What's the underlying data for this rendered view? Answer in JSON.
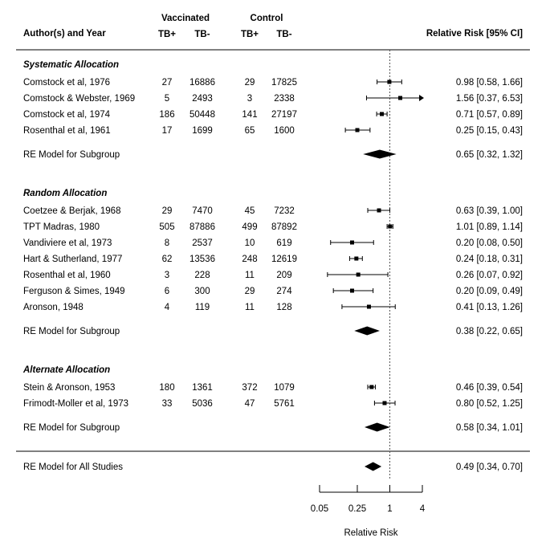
{
  "header": {
    "author_col": "Author(s) and Year",
    "vaccinated": "Vaccinated",
    "control": "Control",
    "tb_pos": "TB+",
    "tb_neg": "TB-",
    "rr_col": "Relative Risk [95% CI]"
  },
  "chart_data": {
    "type": "forest",
    "xlabel": "Relative Risk",
    "x_scale": "log",
    "x_ticks": [
      0.05,
      0.25,
      1,
      4
    ],
    "x_tick_labels": [
      "0.05",
      "0.25",
      "1",
      "4"
    ],
    "reference_line": 1,
    "groups": [
      {
        "label": "Systematic Allocation",
        "studies": [
          {
            "name": "Comstock et al, 1976",
            "vpos": "27",
            "vneg": "16886",
            "cpos": "29",
            "cneg": "17825",
            "rr": 0.98,
            "lo": 0.58,
            "hi": 1.66,
            "text": "0.98 [0.58, 1.66]"
          },
          {
            "name": "Comstock & Webster, 1969",
            "vpos": "5",
            "vneg": "2493",
            "cpos": "3",
            "cneg": "2338",
            "rr": 1.56,
            "lo": 0.37,
            "hi": 6.53,
            "text": "1.56 [0.37, 6.53]"
          },
          {
            "name": "Comstock et al, 1974",
            "vpos": "186",
            "vneg": "50448",
            "cpos": "141",
            "cneg": "27197",
            "rr": 0.71,
            "lo": 0.57,
            "hi": 0.89,
            "text": "0.71 [0.57, 0.89]"
          },
          {
            "name": "Rosenthal et al, 1961",
            "vpos": "17",
            "vneg": "1699",
            "cpos": "65",
            "cneg": "1600",
            "rr": 0.25,
            "lo": 0.15,
            "hi": 0.43,
            "text": "0.25 [0.15, 0.43]"
          }
        ],
        "summary": {
          "label": "RE Model for Subgroup",
          "rr": 0.65,
          "lo": 0.32,
          "hi": 1.32,
          "text": "0.65 [0.32, 1.32]"
        }
      },
      {
        "label": "Random Allocation",
        "studies": [
          {
            "name": "Coetzee & Berjak, 1968",
            "vpos": "29",
            "vneg": "7470",
            "cpos": "45",
            "cneg": "7232",
            "rr": 0.63,
            "lo": 0.39,
            "hi": 1.0,
            "text": "0.63 [0.39, 1.00]"
          },
          {
            "name": "TPT Madras, 1980",
            "vpos": "505",
            "vneg": "87886",
            "cpos": "499",
            "cneg": "87892",
            "rr": 1.01,
            "lo": 0.89,
            "hi": 1.14,
            "text": "1.01 [0.89, 1.14]"
          },
          {
            "name": "Vandiviere et al, 1973",
            "vpos": "8",
            "vneg": "2537",
            "cpos": "10",
            "cneg": "619",
            "rr": 0.2,
            "lo": 0.08,
            "hi": 0.5,
            "text": "0.20 [0.08, 0.50]"
          },
          {
            "name": "Hart & Sutherland, 1977",
            "vpos": "62",
            "vneg": "13536",
            "cpos": "248",
            "cneg": "12619",
            "rr": 0.24,
            "lo": 0.18,
            "hi": 0.31,
            "text": "0.24 [0.18, 0.31]"
          },
          {
            "name": "Rosenthal et al, 1960",
            "vpos": "3",
            "vneg": "228",
            "cpos": "11",
            "cneg": "209",
            "rr": 0.26,
            "lo": 0.07,
            "hi": 0.92,
            "text": "0.26 [0.07, 0.92]"
          },
          {
            "name": "Ferguson & Simes, 1949",
            "vpos": "6",
            "vneg": "300",
            "cpos": "29",
            "cneg": "274",
            "rr": 0.2,
            "lo": 0.09,
            "hi": 0.49,
            "text": "0.20 [0.09, 0.49]"
          },
          {
            "name": "Aronson, 1948",
            "vpos": "4",
            "vneg": "119",
            "cpos": "11",
            "cneg": "128",
            "rr": 0.41,
            "lo": 0.13,
            "hi": 1.26,
            "text": "0.41 [0.13, 1.26]"
          }
        ],
        "summary": {
          "label": "RE Model for Subgroup",
          "rr": 0.38,
          "lo": 0.22,
          "hi": 0.65,
          "text": "0.38 [0.22, 0.65]"
        }
      },
      {
        "label": "Alternate Allocation",
        "studies": [
          {
            "name": "Stein & Aronson, 1953",
            "vpos": "180",
            "vneg": "1361",
            "cpos": "372",
            "cneg": "1079",
            "rr": 0.46,
            "lo": 0.39,
            "hi": 0.54,
            "text": "0.46 [0.39, 0.54]"
          },
          {
            "name": "Frimodt-Moller et al, 1973",
            "vpos": "33",
            "vneg": "5036",
            "cpos": "47",
            "cneg": "5761",
            "rr": 0.8,
            "lo": 0.52,
            "hi": 1.25,
            "text": "0.80 [0.52, 1.25]"
          }
        ],
        "summary": {
          "label": "RE Model for Subgroup",
          "rr": 0.58,
          "lo": 0.34,
          "hi": 1.01,
          "text": "0.58 [0.34, 1.01]"
        }
      }
    ],
    "overall": {
      "label": "RE Model for All Studies",
      "rr": 0.49,
      "lo": 0.34,
      "hi": 0.7,
      "text": "0.49 [0.34, 0.70]"
    }
  }
}
